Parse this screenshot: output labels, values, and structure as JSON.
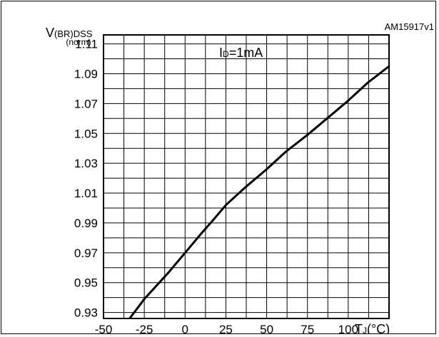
{
  "figure_id": "AM15917v1",
  "chart_data": {
    "type": "line",
    "ylabel_main": "V",
    "ylabel_sub": "(BR)DSS",
    "ylabel_unit": "(norm)",
    "xlabel_main": "T",
    "xlabel_sub": "J",
    "xlabel_unit": "(°C)",
    "annotation_main": "I",
    "annotation_sub": "D",
    "annotation_rest": "=1mA",
    "xlim": [
      -50,
      125
    ],
    "ylim": [
      0.926,
      1.116
    ],
    "x_ticks": [
      -50,
      -25,
      0,
      25,
      50,
      75,
      100
    ],
    "y_ticks": [
      0.93,
      0.95,
      0.97,
      0.99,
      1.01,
      1.03,
      1.05,
      1.07,
      1.09,
      1.11
    ],
    "x_tick_labels": [
      "-50",
      "-25",
      "0",
      "25",
      "50",
      "75",
      "100"
    ],
    "y_tick_labels": [
      "0.93",
      "0.95",
      "0.97",
      "0.99",
      "1.01",
      "1.03",
      "1.05",
      "1.07",
      "1.09",
      "1.11"
    ],
    "grid": true,
    "series": [
      {
        "x": [
          -34,
          -25,
          -10,
          0,
          10,
          18,
          25,
          37,
          50,
          62,
          75,
          87,
          100,
          112,
          125
        ],
        "y": [
          0.926,
          0.939,
          0.957,
          0.97,
          0.983,
          0.993,
          1.002,
          1.014,
          1.026,
          1.038,
          1.049,
          1.06,
          1.072,
          1.084,
          1.095
        ]
      }
    ]
  }
}
